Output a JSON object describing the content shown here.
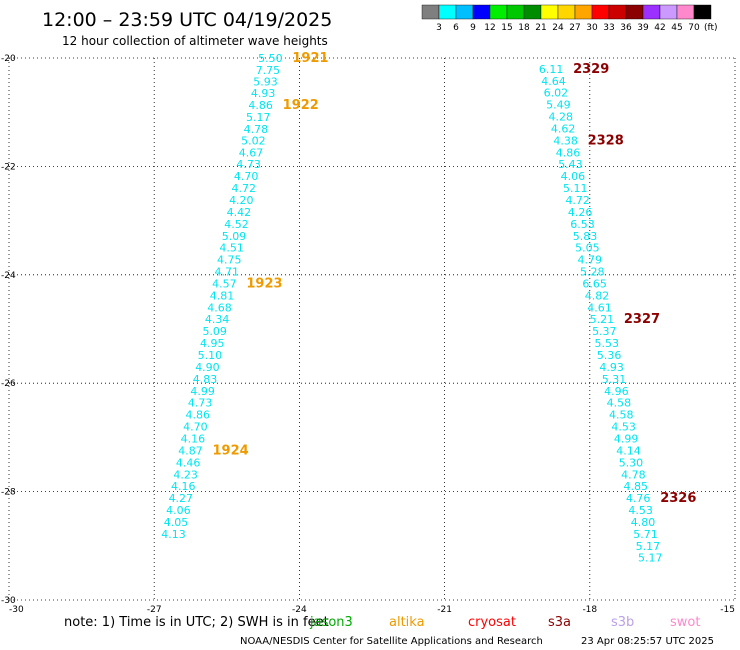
{
  "header": {
    "title": "12:00 – 23:59 UTC 04/19/2025",
    "subtitle": "12 hour collection of altimeter wave heights"
  },
  "colorbar": {
    "labels": [
      "3",
      "6",
      "9",
      "12",
      "15",
      "18",
      "21",
      "24",
      "27",
      "30",
      "33",
      "36",
      "39",
      "42",
      "45",
      "70"
    ],
    "unit": "(ft)",
    "colors": [
      "#7f7f7f",
      "#00ffff",
      "#00bfff",
      "#0000ff",
      "#00ee00",
      "#00c800",
      "#008c00",
      "#ffff00",
      "#ffd700",
      "#ffa500",
      "#ff0000",
      "#cd0000",
      "#8b0000",
      "#9b30ff",
      "#cc99ff",
      "#ff88cc",
      "#000000"
    ]
  },
  "chart_data": {
    "type": "scatter",
    "xlim": [
      -30,
      -15
    ],
    "ylim": [
      -30,
      -20
    ],
    "x_ticks": [
      "-30",
      "-27",
      "-24",
      "-21",
      "-18",
      "-15"
    ],
    "y_ticks": [
      "-20",
      "-22",
      "-24",
      "-26",
      "-28",
      "-30"
    ],
    "y_tick_values": [
      -20,
      -22,
      -24,
      -26,
      -28,
      -30
    ],
    "x_tick_values": [
      -30,
      -27,
      -24,
      -21,
      -18,
      -15
    ],
    "grid": true,
    "value_color": "#00e5ee",
    "tracks": [
      {
        "points": [
          {
            "lon": -24.6,
            "lat": -20.0,
            "label": "5.50"
          },
          {
            "lon": -24.65,
            "lat": -20.22,
            "label": "7.75"
          },
          {
            "lon": -24.7,
            "lat": -20.43,
            "label": "5.93"
          },
          {
            "lon": -24.75,
            "lat": -20.65,
            "label": "4.93"
          },
          {
            "lon": -24.8,
            "lat": -20.87,
            "label": "4.86"
          },
          {
            "lon": -24.85,
            "lat": -21.09,
            "label": "5.17"
          },
          {
            "lon": -24.9,
            "lat": -21.31,
            "label": "4.78"
          },
          {
            "lon": -24.95,
            "lat": -21.52,
            "label": "5.02"
          },
          {
            "lon": -25.0,
            "lat": -21.74,
            "label": "4.67"
          },
          {
            "lon": -25.05,
            "lat": -21.96,
            "label": "4.73"
          },
          {
            "lon": -25.1,
            "lat": -22.18,
            "label": "4.70"
          },
          {
            "lon": -25.15,
            "lat": -22.4,
            "label": "4.72"
          },
          {
            "lon": -25.2,
            "lat": -22.62,
            "label": "4.20"
          },
          {
            "lon": -25.25,
            "lat": -22.84,
            "label": "4.42"
          },
          {
            "lon": -25.3,
            "lat": -23.06,
            "label": "4.52"
          },
          {
            "lon": -25.35,
            "lat": -23.28,
            "label": "5.09"
          },
          {
            "lon": -25.4,
            "lat": -23.5,
            "label": "4.51"
          },
          {
            "lon": -25.45,
            "lat": -23.72,
            "label": "4.75"
          },
          {
            "lon": -25.5,
            "lat": -23.94,
            "label": "4.71"
          },
          {
            "lon": -25.55,
            "lat": -24.16,
            "label": "4.57"
          },
          {
            "lon": -25.6,
            "lat": -24.38,
            "label": "4.81"
          },
          {
            "lon": -25.65,
            "lat": -24.6,
            "label": "4.68"
          },
          {
            "lon": -25.7,
            "lat": -24.82,
            "label": "4.34"
          },
          {
            "lon": -25.75,
            "lat": -25.04,
            "label": "5.09"
          },
          {
            "lon": -25.8,
            "lat": -25.26,
            "label": "4.95"
          },
          {
            "lon": -25.85,
            "lat": -25.48,
            "label": "5.10"
          },
          {
            "lon": -25.9,
            "lat": -25.7,
            "label": "4.90"
          },
          {
            "lon": -25.95,
            "lat": -25.92,
            "label": "4.83"
          },
          {
            "lon": -26.0,
            "lat": -26.14,
            "label": "4.99"
          },
          {
            "lon": -26.05,
            "lat": -26.36,
            "label": "4.73"
          },
          {
            "lon": -26.1,
            "lat": -26.58,
            "label": "4.86"
          },
          {
            "lon": -26.15,
            "lat": -26.8,
            "label": "4.70"
          },
          {
            "lon": -26.2,
            "lat": -27.02,
            "label": "4.16"
          },
          {
            "lon": -26.25,
            "lat": -27.24,
            "label": "4.87"
          },
          {
            "lon": -26.3,
            "lat": -27.46,
            "label": "4.46"
          },
          {
            "lon": -26.35,
            "lat": -27.68,
            "label": "4.23"
          },
          {
            "lon": -26.4,
            "lat": -27.9,
            "label": "4.16"
          },
          {
            "lon": -26.45,
            "lat": -28.12,
            "label": "4.27"
          },
          {
            "lon": -26.5,
            "lat": -28.34,
            "label": "4.06"
          },
          {
            "lon": -26.55,
            "lat": -28.56,
            "label": "4.05"
          },
          {
            "lon": -26.6,
            "lat": -28.78,
            "label": "4.13"
          }
        ],
        "pass_labels": [
          {
            "lat": -20.0,
            "text": "1921",
            "color": "#ee9a00"
          },
          {
            "lat": -20.87,
            "text": "1922",
            "color": "#ee9a00"
          },
          {
            "lat": -24.16,
            "text": "1923",
            "color": "#ee9a00"
          },
          {
            "lat": -27.24,
            "text": "1924",
            "color": "#ee9a00"
          }
        ]
      },
      {
        "points": [
          {
            "lon": -18.8,
            "lat": -20.2,
            "label": "6.11"
          },
          {
            "lon": -18.75,
            "lat": -20.42,
            "label": "4.64"
          },
          {
            "lon": -18.7,
            "lat": -20.64,
            "label": "6.02"
          },
          {
            "lon": -18.65,
            "lat": -20.86,
            "label": "5.49"
          },
          {
            "lon": -18.6,
            "lat": -21.08,
            "label": "4.28"
          },
          {
            "lon": -18.55,
            "lat": -21.3,
            "label": "4.62"
          },
          {
            "lon": -18.5,
            "lat": -21.52,
            "label": "4.38"
          },
          {
            "lon": -18.45,
            "lat": -21.74,
            "label": "4.86"
          },
          {
            "lon": -18.4,
            "lat": -21.96,
            "label": "5.43"
          },
          {
            "lon": -18.35,
            "lat": -22.18,
            "label": "4.06"
          },
          {
            "lon": -18.3,
            "lat": -22.4,
            "label": "5.11"
          },
          {
            "lon": -18.25,
            "lat": -22.62,
            "label": "4.72"
          },
          {
            "lon": -18.2,
            "lat": -22.84,
            "label": "4.26"
          },
          {
            "lon": -18.15,
            "lat": -23.06,
            "label": "6.53"
          },
          {
            "lon": -18.1,
            "lat": -23.28,
            "label": "5.83"
          },
          {
            "lon": -18.05,
            "lat": -23.5,
            "label": "5.05"
          },
          {
            "lon": -18.0,
            "lat": -23.72,
            "label": "4.79"
          },
          {
            "lon": -17.95,
            "lat": -23.94,
            "label": "5.28"
          },
          {
            "lon": -17.9,
            "lat": -24.16,
            "label": "6.65"
          },
          {
            "lon": -17.85,
            "lat": -24.38,
            "label": "4.82"
          },
          {
            "lon": -17.8,
            "lat": -24.6,
            "label": "4.61"
          },
          {
            "lon": -17.75,
            "lat": -24.82,
            "label": "5.21"
          },
          {
            "lon": -17.7,
            "lat": -25.04,
            "label": "5.37"
          },
          {
            "lon": -17.65,
            "lat": -25.26,
            "label": "5.53"
          },
          {
            "lon": -17.6,
            "lat": -25.48,
            "label": "5.36"
          },
          {
            "lon": -17.55,
            "lat": -25.7,
            "label": "4.93"
          },
          {
            "lon": -17.5,
            "lat": -25.92,
            "label": "5.31"
          },
          {
            "lon": -17.45,
            "lat": -26.14,
            "label": "4.96"
          },
          {
            "lon": -17.4,
            "lat": -26.36,
            "label": "4.58"
          },
          {
            "lon": -17.35,
            "lat": -26.58,
            "label": "4.58"
          },
          {
            "lon": -17.3,
            "lat": -26.8,
            "label": "4.53"
          },
          {
            "lon": -17.25,
            "lat": -27.02,
            "label": "4.99"
          },
          {
            "lon": -17.2,
            "lat": -27.24,
            "label": "4.14"
          },
          {
            "lon": -17.15,
            "lat": -27.46,
            "label": "5.30"
          },
          {
            "lon": -17.1,
            "lat": -27.68,
            "label": "4.78"
          },
          {
            "lon": -17.05,
            "lat": -27.9,
            "label": "4.85"
          },
          {
            "lon": -17.0,
            "lat": -28.12,
            "label": "4.76"
          },
          {
            "lon": -16.95,
            "lat": -28.34,
            "label": "4.53"
          },
          {
            "lon": -16.9,
            "lat": -28.56,
            "label": "4.80"
          },
          {
            "lon": -16.85,
            "lat": -28.78,
            "label": "5.71"
          },
          {
            "lon": -16.8,
            "lat": -29.0,
            "label": "5.17"
          },
          {
            "lon": -16.75,
            "lat": -29.22,
            "label": "5.17"
          }
        ],
        "pass_labels": [
          {
            "lat": -20.2,
            "text": "2329",
            "color": "#8b0000"
          },
          {
            "lat": -21.52,
            "text": "2328",
            "color": "#8b0000"
          },
          {
            "lat": -24.82,
            "text": "2327",
            "color": "#8b0000"
          },
          {
            "lat": -28.12,
            "text": "2326",
            "color": "#8b0000"
          }
        ]
      }
    ]
  },
  "footer": {
    "note": "note: 1) Time is in UTC; 2) SWH is in feet",
    "satellites": [
      {
        "name": "jason3",
        "color": "#00aa00"
      },
      {
        "name": "altika",
        "color": "#ee9a00"
      },
      {
        "name": "cryosat",
        "color": "#ff0000"
      },
      {
        "name": "s3a",
        "color": "#8b0000"
      },
      {
        "name": "s3b",
        "color": "#bba0e8"
      },
      {
        "name": "swot",
        "color": "#ff88cc"
      }
    ],
    "credit": "NOAA/NESDIS Center for Satellite Applications and Research",
    "timestamp": "23 Apr 08:25:57 UTC 2025"
  }
}
